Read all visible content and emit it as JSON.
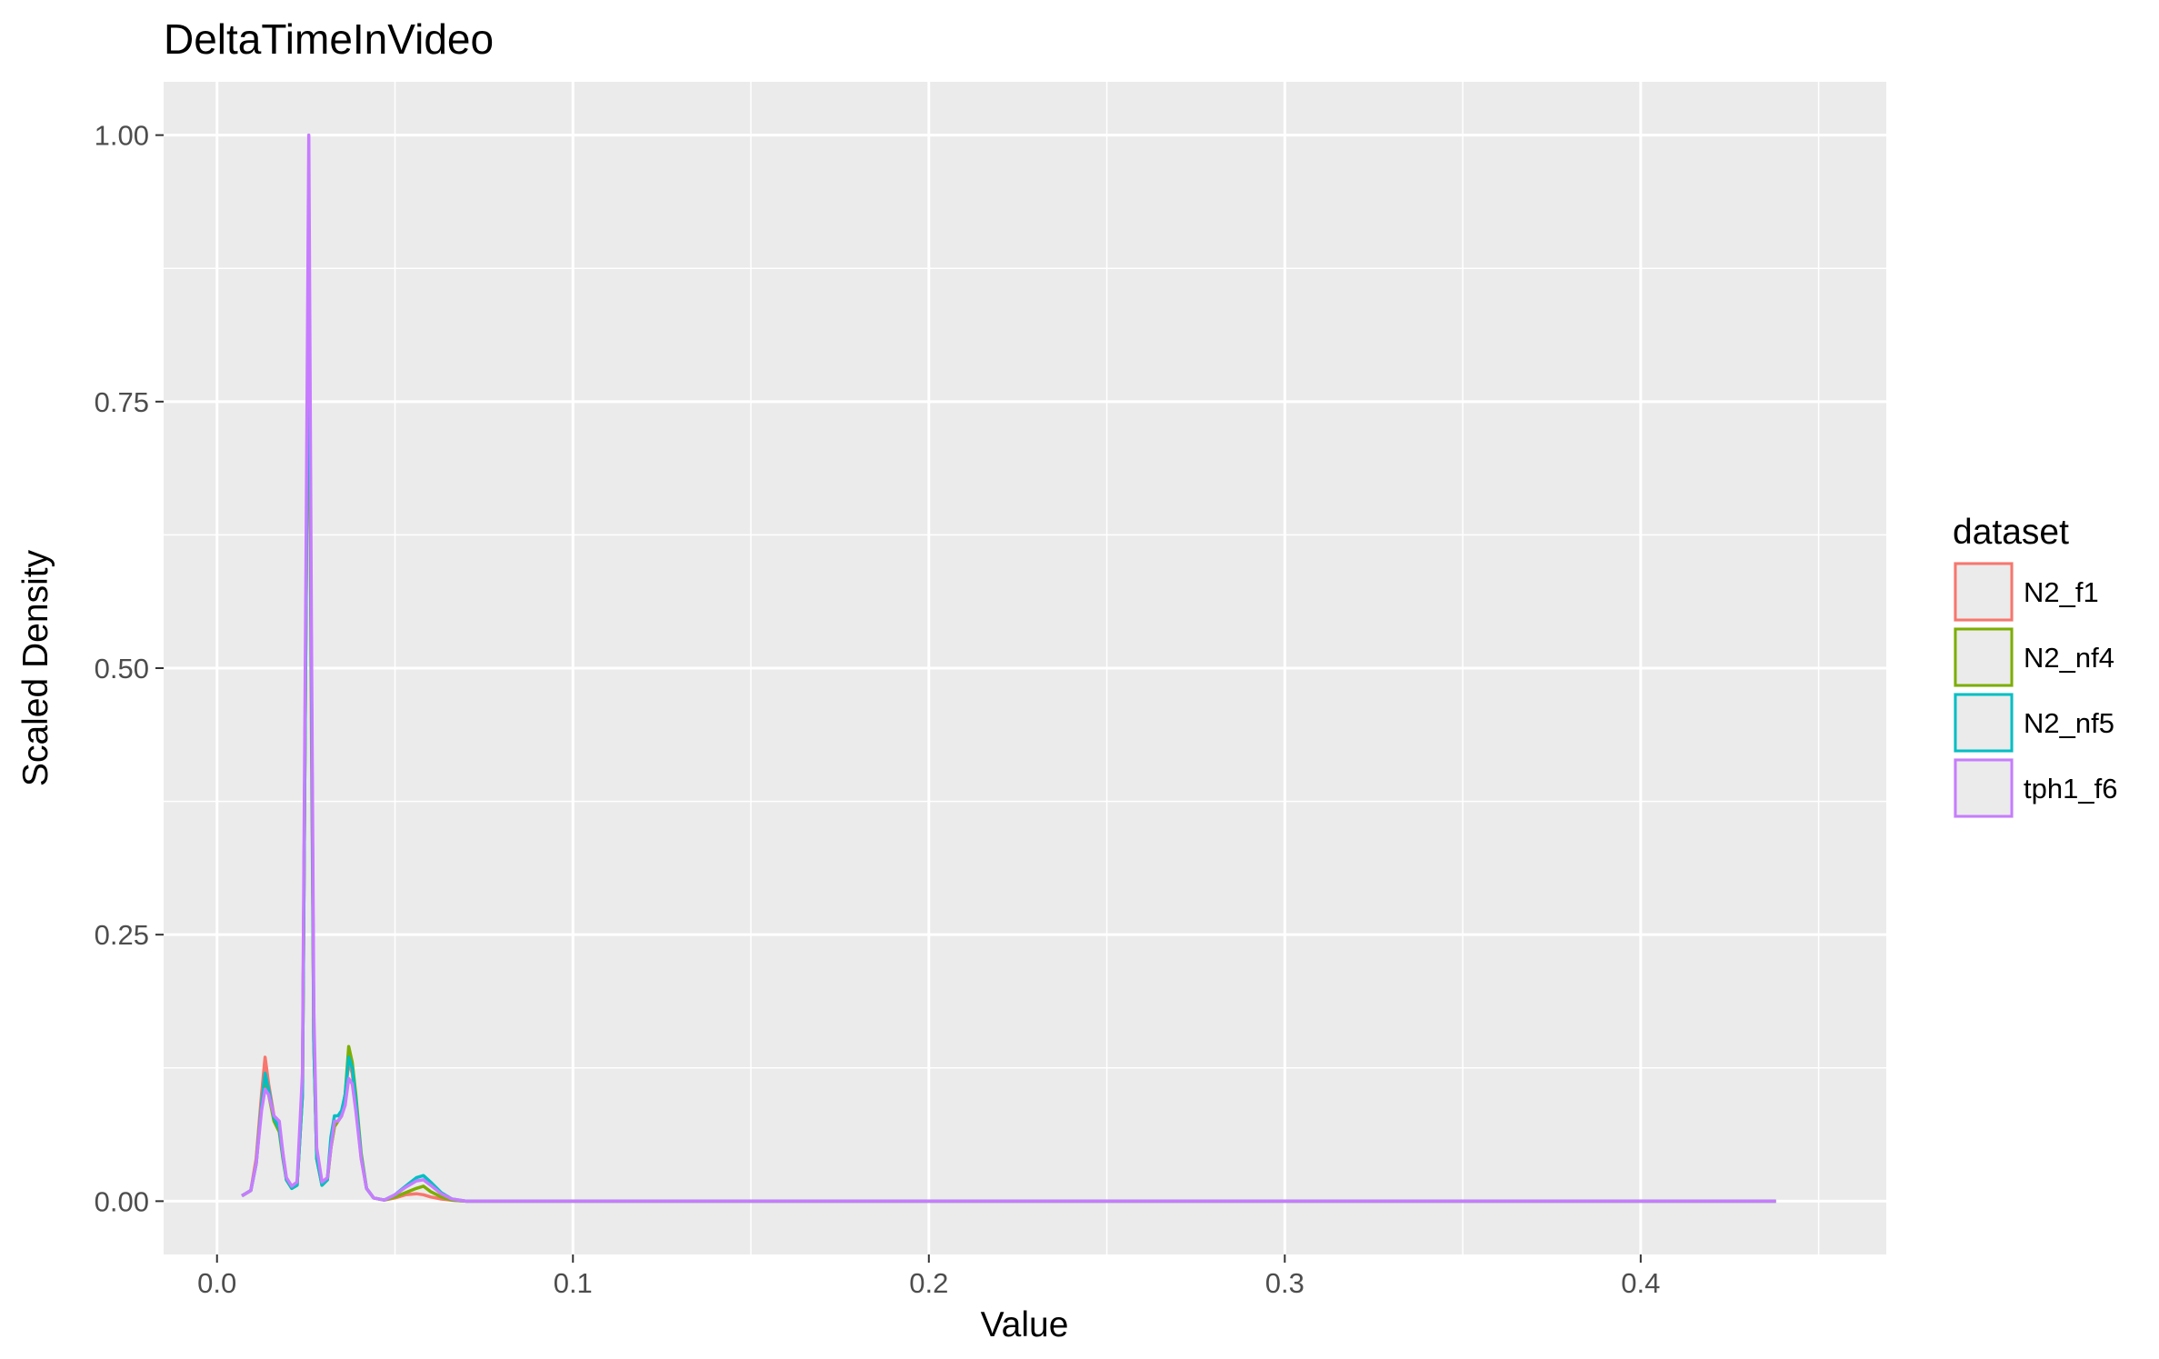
{
  "chart_data": {
    "type": "line",
    "title": "DeltaTimeInVideo",
    "xlabel": "Value",
    "ylabel": "Scaled Density",
    "xlim": [
      -0.015,
      0.469
    ],
    "ylim": [
      -0.05,
      1.05
    ],
    "x_ticks": [
      0.0,
      0.1,
      0.2,
      0.3,
      0.4
    ],
    "x_tick_labels": [
      "0.0",
      "0.1",
      "0.2",
      "0.3",
      "0.4"
    ],
    "y_ticks": [
      0.0,
      0.25,
      0.5,
      0.75,
      1.0
    ],
    "y_tick_labels": [
      "0.00",
      "0.25",
      "0.50",
      "0.75",
      "1.00"
    ],
    "grid": true,
    "legend": {
      "title": "dataset",
      "placement": "right"
    },
    "series": [
      {
        "name": "N2_f1",
        "color": "#F8766D",
        "x": [
          0.007,
          0.0095,
          0.011,
          0.0125,
          0.0135,
          0.0145,
          0.016,
          0.0175,
          0.0185,
          0.0195,
          0.021,
          0.0225,
          0.024,
          0.025,
          0.0258,
          0.0265,
          0.0272,
          0.028,
          0.0295,
          0.031,
          0.032,
          0.033,
          0.034,
          0.035,
          0.036,
          0.037,
          0.038,
          0.039,
          0.0405,
          0.042,
          0.044,
          0.047,
          0.05,
          0.053,
          0.056,
          0.058,
          0.06,
          0.063,
          0.066,
          0.07,
          0.08,
          0.1,
          0.2,
          0.3,
          0.4,
          0.438
        ],
        "y": [
          0.005,
          0.01,
          0.04,
          0.1,
          0.135,
          0.11,
          0.08,
          0.07,
          0.045,
          0.02,
          0.012,
          0.015,
          0.1,
          0.55,
          0.85,
          0.45,
          0.15,
          0.04,
          0.015,
          0.02,
          0.05,
          0.07,
          0.075,
          0.08,
          0.1,
          0.13,
          0.12,
          0.09,
          0.04,
          0.012,
          0.003,
          0.001,
          0.003,
          0.006,
          0.007,
          0.006,
          0.004,
          0.002,
          0.001,
          0.0,
          0.0,
          0.0,
          0.0,
          0.0,
          0.0,
          0.0
        ]
      },
      {
        "name": "N2_nf4",
        "color": "#7CAE00",
        "x": [
          0.007,
          0.0095,
          0.011,
          0.0125,
          0.0135,
          0.0145,
          0.016,
          0.0175,
          0.0185,
          0.0195,
          0.021,
          0.0225,
          0.024,
          0.025,
          0.0258,
          0.0265,
          0.0272,
          0.028,
          0.0295,
          0.031,
          0.032,
          0.033,
          0.034,
          0.035,
          0.036,
          0.037,
          0.038,
          0.039,
          0.0405,
          0.042,
          0.044,
          0.047,
          0.05,
          0.053,
          0.056,
          0.058,
          0.06,
          0.063,
          0.066,
          0.07,
          0.08,
          0.1,
          0.2,
          0.3,
          0.4,
          0.438
        ],
        "y": [
          0.005,
          0.01,
          0.035,
          0.09,
          0.115,
          0.1,
          0.075,
          0.065,
          0.04,
          0.02,
          0.012,
          0.015,
          0.1,
          0.55,
          0.9,
          0.5,
          0.15,
          0.04,
          0.015,
          0.02,
          0.05,
          0.07,
          0.075,
          0.08,
          0.1,
          0.145,
          0.13,
          0.1,
          0.045,
          0.012,
          0.003,
          0.001,
          0.004,
          0.008,
          0.012,
          0.014,
          0.009,
          0.004,
          0.001,
          0.0,
          0.0,
          0.0,
          0.0,
          0.0,
          0.0,
          0.0
        ]
      },
      {
        "name": "N2_nf5",
        "color": "#00BFC4",
        "x": [
          0.007,
          0.0095,
          0.011,
          0.0125,
          0.0135,
          0.0145,
          0.016,
          0.0175,
          0.0185,
          0.0195,
          0.021,
          0.0225,
          0.024,
          0.025,
          0.0258,
          0.0265,
          0.0272,
          0.028,
          0.0295,
          0.031,
          0.032,
          0.033,
          0.034,
          0.035,
          0.036,
          0.037,
          0.038,
          0.039,
          0.0405,
          0.042,
          0.044,
          0.047,
          0.05,
          0.053,
          0.056,
          0.058,
          0.06,
          0.063,
          0.066,
          0.07,
          0.08,
          0.1,
          0.2,
          0.3,
          0.4,
          0.438
        ],
        "y": [
          0.005,
          0.01,
          0.035,
          0.09,
          0.12,
          0.105,
          0.078,
          0.068,
          0.042,
          0.02,
          0.012,
          0.015,
          0.1,
          0.55,
          0.92,
          0.5,
          0.15,
          0.04,
          0.015,
          0.02,
          0.06,
          0.08,
          0.08,
          0.085,
          0.1,
          0.135,
          0.125,
          0.095,
          0.042,
          0.012,
          0.003,
          0.001,
          0.006,
          0.014,
          0.022,
          0.024,
          0.018,
          0.008,
          0.002,
          0.0,
          0.0,
          0.0,
          0.0,
          0.0,
          0.0,
          0.0
        ]
      },
      {
        "name": "tph1_f6",
        "color": "#C77CFF",
        "x": [
          0.007,
          0.0095,
          0.011,
          0.0125,
          0.0135,
          0.0145,
          0.016,
          0.0175,
          0.0185,
          0.0195,
          0.021,
          0.0225,
          0.024,
          0.025,
          0.0258,
          0.0265,
          0.0272,
          0.028,
          0.0295,
          0.031,
          0.032,
          0.033,
          0.034,
          0.035,
          0.036,
          0.037,
          0.038,
          0.039,
          0.0405,
          0.042,
          0.044,
          0.047,
          0.05,
          0.053,
          0.056,
          0.058,
          0.06,
          0.063,
          0.066,
          0.07,
          0.08,
          0.1,
          0.2,
          0.3,
          0.4,
          0.438
        ],
        "y": [
          0.005,
          0.01,
          0.035,
          0.085,
          0.105,
          0.1,
          0.08,
          0.075,
          0.045,
          0.022,
          0.014,
          0.018,
          0.12,
          0.6,
          1.0,
          0.55,
          0.18,
          0.05,
          0.018,
          0.022,
          0.05,
          0.075,
          0.075,
          0.08,
          0.09,
          0.115,
          0.11,
          0.085,
          0.04,
          0.012,
          0.003,
          0.001,
          0.006,
          0.013,
          0.019,
          0.02,
          0.015,
          0.007,
          0.002,
          0.0,
          0.0,
          0.0,
          0.0,
          0.0,
          0.0,
          0.0
        ]
      }
    ]
  }
}
